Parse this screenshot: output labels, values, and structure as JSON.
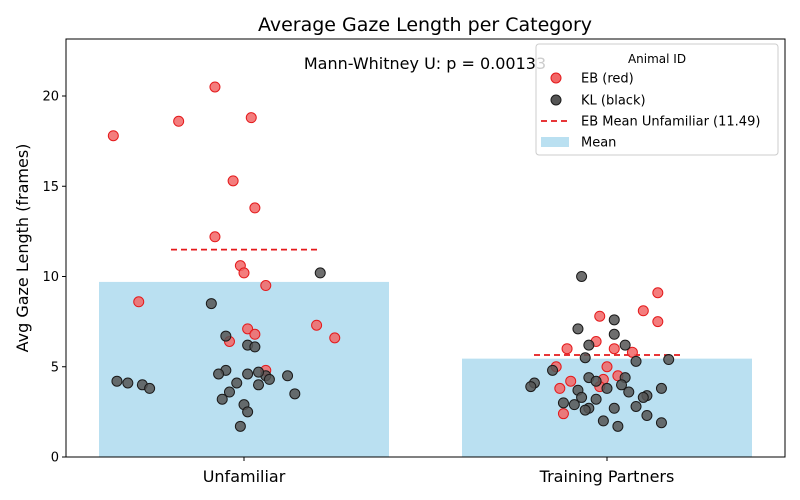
{
  "chart_data": {
    "type": "bar",
    "title": "Average Gaze Length per Category",
    "annotation": "Mann-Whitney U: p = 0.00133",
    "xlabel": "",
    "ylabel": "Avg Gaze Length (frames)",
    "ylim": [
      0,
      23.2
    ],
    "yticks": [
      0,
      5,
      10,
      15,
      20
    ],
    "categories": [
      "Unfamiliar",
      "Training Partners"
    ],
    "bar_series": {
      "name": "Mean",
      "values": [
        9.7,
        5.45
      ],
      "color": "#bae0f1"
    },
    "eb_mean_line": {
      "name": "EB Mean Unfamiliar (11.49)",
      "value": 11.49,
      "color": "#e41a1c"
    },
    "eb_mean_training": 5.65,
    "legend": {
      "title": "Animal ID",
      "position": "upper right",
      "entries": [
        "EB (red)",
        "KL (black)",
        "EB Mean Unfamiliar (11.49)",
        "Mean"
      ]
    },
    "series": [
      {
        "name": "EB (red)",
        "color": "#f26666",
        "points": [
          {
            "x": "Unfamiliar",
            "jitter": -0.08,
            "y": 20.5
          },
          {
            "x": "Unfamiliar",
            "jitter": -0.18,
            "y": 18.6
          },
          {
            "x": "Unfamiliar",
            "jitter": 0.02,
            "y": 18.8
          },
          {
            "x": "Unfamiliar",
            "jitter": -0.36,
            "y": 17.8
          },
          {
            "x": "Unfamiliar",
            "jitter": -0.03,
            "y": 15.3
          },
          {
            "x": "Unfamiliar",
            "jitter": 0.03,
            "y": 13.8
          },
          {
            "x": "Unfamiliar",
            "jitter": -0.08,
            "y": 12.2
          },
          {
            "x": "Unfamiliar",
            "jitter": -0.01,
            "y": 10.6
          },
          {
            "x": "Unfamiliar",
            "jitter": 0.0,
            "y": 10.2
          },
          {
            "x": "Unfamiliar",
            "jitter": 0.06,
            "y": 9.5
          },
          {
            "x": "Unfamiliar",
            "jitter": -0.29,
            "y": 8.6
          },
          {
            "x": "Unfamiliar",
            "jitter": 0.2,
            "y": 7.3
          },
          {
            "x": "Unfamiliar",
            "jitter": 0.01,
            "y": 7.1
          },
          {
            "x": "Unfamiliar",
            "jitter": 0.03,
            "y": 6.8
          },
          {
            "x": "Unfamiliar",
            "jitter": 0.25,
            "y": 6.6
          },
          {
            "x": "Unfamiliar",
            "jitter": -0.04,
            "y": 6.4
          },
          {
            "x": "Unfamiliar",
            "jitter": 0.06,
            "y": 4.8
          },
          {
            "x": "Training Partners",
            "jitter": 0.14,
            "y": 9.1
          },
          {
            "x": "Training Partners",
            "jitter": 0.1,
            "y": 8.1
          },
          {
            "x": "Training Partners",
            "jitter": -0.02,
            "y": 7.8
          },
          {
            "x": "Training Partners",
            "jitter": 0.14,
            "y": 7.5
          },
          {
            "x": "Training Partners",
            "jitter": -0.03,
            "y": 6.4
          },
          {
            "x": "Training Partners",
            "jitter": -0.11,
            "y": 6.0
          },
          {
            "x": "Training Partners",
            "jitter": 0.02,
            "y": 6.0
          },
          {
            "x": "Training Partners",
            "jitter": 0.07,
            "y": 5.8
          },
          {
            "x": "Training Partners",
            "jitter": 0.0,
            "y": 5.0
          },
          {
            "x": "Training Partners",
            "jitter": -0.14,
            "y": 5.0
          },
          {
            "x": "Training Partners",
            "jitter": 0.03,
            "y": 4.5
          },
          {
            "x": "Training Partners",
            "jitter": -0.01,
            "y": 4.3
          },
          {
            "x": "Training Partners",
            "jitter": -0.1,
            "y": 4.2
          },
          {
            "x": "Training Partners",
            "jitter": -0.13,
            "y": 3.8
          },
          {
            "x": "Training Partners",
            "jitter": -0.02,
            "y": 3.9
          },
          {
            "x": "Training Partners",
            "jitter": -0.12,
            "y": 2.4
          }
        ]
      },
      {
        "name": "KL (black)",
        "color": "#555555",
        "points": [
          {
            "x": "Unfamiliar",
            "jitter": 0.21,
            "y": 10.2
          },
          {
            "x": "Unfamiliar",
            "jitter": -0.09,
            "y": 8.5
          },
          {
            "x": "Unfamiliar",
            "jitter": -0.05,
            "y": 6.7
          },
          {
            "x": "Unfamiliar",
            "jitter": 0.01,
            "y": 6.2
          },
          {
            "x": "Unfamiliar",
            "jitter": 0.03,
            "y": 6.1
          },
          {
            "x": "Unfamiliar",
            "jitter": -0.05,
            "y": 4.8
          },
          {
            "x": "Unfamiliar",
            "jitter": 0.01,
            "y": 4.6
          },
          {
            "x": "Unfamiliar",
            "jitter": 0.06,
            "y": 4.5
          },
          {
            "x": "Unfamiliar",
            "jitter": 0.04,
            "y": 4.7
          },
          {
            "x": "Unfamiliar",
            "jitter": -0.07,
            "y": 4.6
          },
          {
            "x": "Unfamiliar",
            "jitter": 0.12,
            "y": 4.5
          },
          {
            "x": "Unfamiliar",
            "jitter": -0.35,
            "y": 4.2
          },
          {
            "x": "Unfamiliar",
            "jitter": -0.32,
            "y": 4.1
          },
          {
            "x": "Unfamiliar",
            "jitter": -0.28,
            "y": 4.0
          },
          {
            "x": "Unfamiliar",
            "jitter": -0.26,
            "y": 3.8
          },
          {
            "x": "Unfamiliar",
            "jitter": -0.02,
            "y": 4.1
          },
          {
            "x": "Unfamiliar",
            "jitter": 0.04,
            "y": 4.0
          },
          {
            "x": "Unfamiliar",
            "jitter": 0.07,
            "y": 4.3
          },
          {
            "x": "Unfamiliar",
            "jitter": -0.04,
            "y": 3.6
          },
          {
            "x": "Unfamiliar",
            "jitter": 0.14,
            "y": 3.5
          },
          {
            "x": "Unfamiliar",
            "jitter": -0.06,
            "y": 3.2
          },
          {
            "x": "Unfamiliar",
            "jitter": 0.0,
            "y": 2.9
          },
          {
            "x": "Unfamiliar",
            "jitter": 0.01,
            "y": 2.5
          },
          {
            "x": "Unfamiliar",
            "jitter": -0.01,
            "y": 1.7
          },
          {
            "x": "Training Partners",
            "jitter": -0.07,
            "y": 10.0
          },
          {
            "x": "Training Partners",
            "jitter": -0.08,
            "y": 7.1
          },
          {
            "x": "Training Partners",
            "jitter": 0.02,
            "y": 7.6
          },
          {
            "x": "Training Partners",
            "jitter": 0.02,
            "y": 6.8
          },
          {
            "x": "Training Partners",
            "jitter": -0.05,
            "y": 6.2
          },
          {
            "x": "Training Partners",
            "jitter": 0.05,
            "y": 6.2
          },
          {
            "x": "Training Partners",
            "jitter": -0.06,
            "y": 5.5
          },
          {
            "x": "Training Partners",
            "jitter": 0.08,
            "y": 5.3
          },
          {
            "x": "Training Partners",
            "jitter": 0.17,
            "y": 5.4
          },
          {
            "x": "Training Partners",
            "jitter": -0.15,
            "y": 4.8
          },
          {
            "x": "Training Partners",
            "jitter": -0.05,
            "y": 4.4
          },
          {
            "x": "Training Partners",
            "jitter": -0.03,
            "y": 4.2
          },
          {
            "x": "Training Partners",
            "jitter": 0.05,
            "y": 4.4
          },
          {
            "x": "Training Partners",
            "jitter": -0.2,
            "y": 4.1
          },
          {
            "x": "Training Partners",
            "jitter": -0.21,
            "y": 3.9
          },
          {
            "x": "Training Partners",
            "jitter": 0.0,
            "y": 3.8
          },
          {
            "x": "Training Partners",
            "jitter": 0.04,
            "y": 4.0
          },
          {
            "x": "Training Partners",
            "jitter": -0.08,
            "y": 3.7
          },
          {
            "x": "Training Partners",
            "jitter": 0.06,
            "y": 3.6
          },
          {
            "x": "Training Partners",
            "jitter": 0.11,
            "y": 3.4
          },
          {
            "x": "Training Partners",
            "jitter": 0.15,
            "y": 3.8
          },
          {
            "x": "Training Partners",
            "jitter": 0.1,
            "y": 3.3
          },
          {
            "x": "Training Partners",
            "jitter": -0.07,
            "y": 3.3
          },
          {
            "x": "Training Partners",
            "jitter": -0.03,
            "y": 3.2
          },
          {
            "x": "Training Partners",
            "jitter": -0.09,
            "y": 2.9
          },
          {
            "x": "Training Partners",
            "jitter": -0.05,
            "y": 2.7
          },
          {
            "x": "Training Partners",
            "jitter": 0.02,
            "y": 2.7
          },
          {
            "x": "Training Partners",
            "jitter": -0.06,
            "y": 2.6
          },
          {
            "x": "Training Partners",
            "jitter": 0.08,
            "y": 2.8
          },
          {
            "x": "Training Partners",
            "jitter": 0.11,
            "y": 2.3
          },
          {
            "x": "Training Partners",
            "jitter": -0.01,
            "y": 2.0
          },
          {
            "x": "Training Partners",
            "jitter": 0.03,
            "y": 1.7
          },
          {
            "x": "Training Partners",
            "jitter": 0.15,
            "y": 1.9
          },
          {
            "x": "Training Partners",
            "jitter": -0.12,
            "y": 3.0
          }
        ]
      }
    ]
  }
}
